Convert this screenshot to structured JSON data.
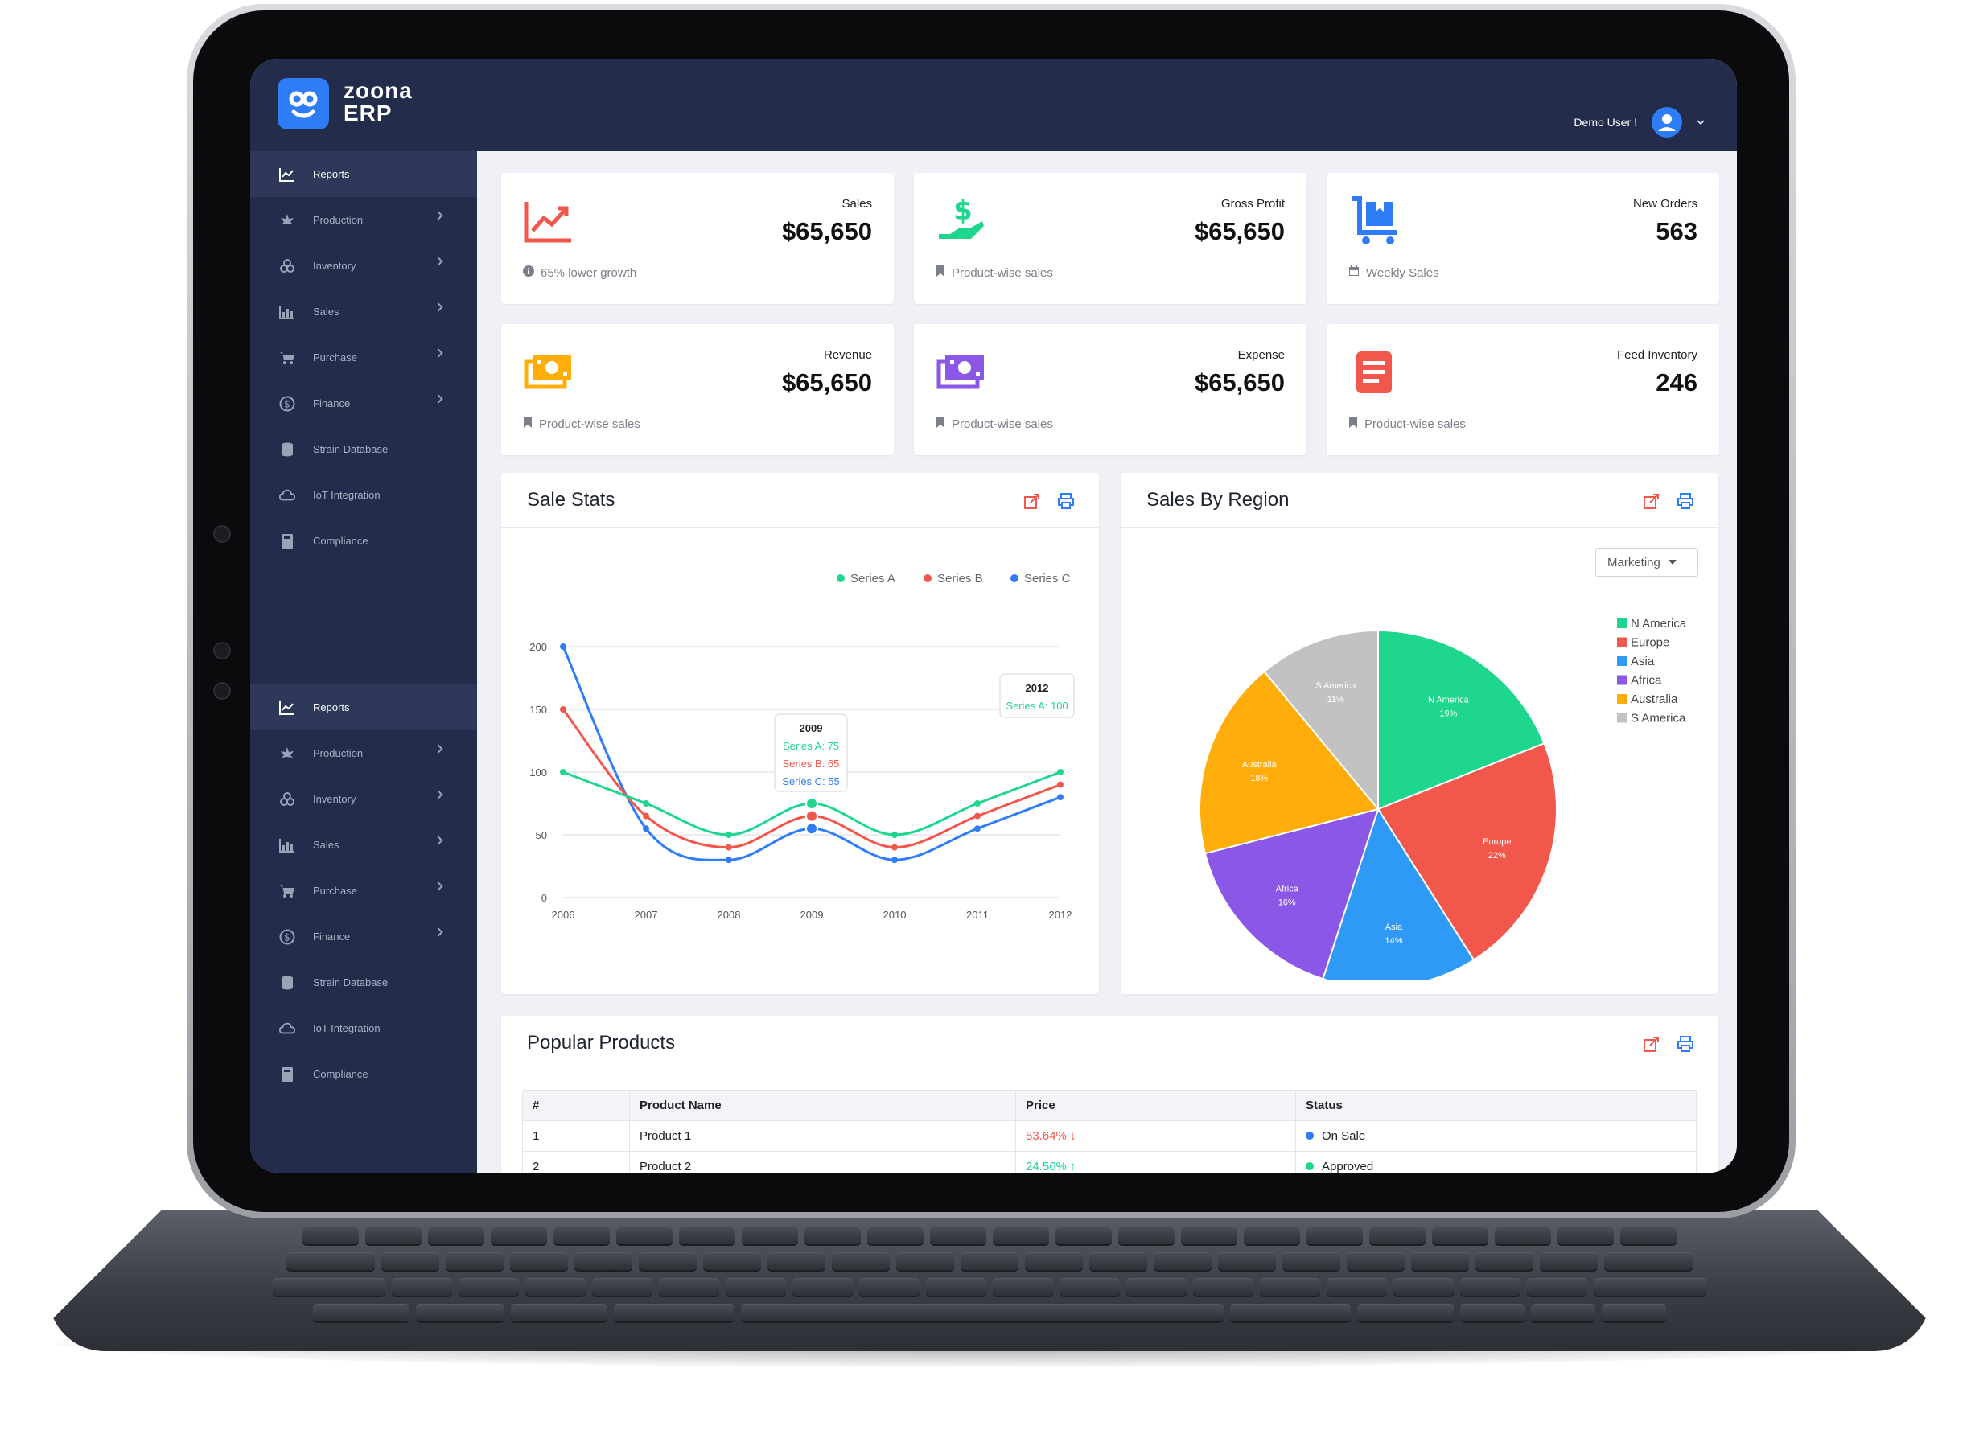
{
  "app": {
    "brand_line1": "zoona",
    "brand_line2": "ERP",
    "user_name": "Demo User !"
  },
  "sidebar": {
    "items": [
      {
        "label": "Reports",
        "icon": "chart-line-icon",
        "active": true
      },
      {
        "label": "Production",
        "icon": "leaf-icon",
        "chevron": true
      },
      {
        "label": "Inventory",
        "icon": "boxes-icon",
        "chevron": true
      },
      {
        "label": "Sales",
        "icon": "bar-chart-icon",
        "chevron": true
      },
      {
        "label": "Purchase",
        "icon": "cart-icon",
        "chevron": true
      },
      {
        "label": "Finance",
        "icon": "dollar-circle-icon",
        "chevron": true
      },
      {
        "label": "Strain Database",
        "icon": "database-icon"
      },
      {
        "label": "IoT Integration",
        "icon": "cloud-icon"
      },
      {
        "label": "Compliance",
        "icon": "book-icon"
      }
    ]
  },
  "stats": [
    {
      "label": "Sales",
      "value": "$65,650",
      "foot": "65% lower growth",
      "icon": "trend-up-icon",
      "color": "#f2574c"
    },
    {
      "label": "Gross Profit",
      "value": "$65,650",
      "foot": "Product-wise sales",
      "icon": "money-hand-icon",
      "color": "#1ed68e"
    },
    {
      "label": "New Orders",
      "value": "563",
      "foot": "Weekly Sales",
      "icon": "cart-box-icon",
      "color": "#2f7df6"
    },
    {
      "label": "Revenue",
      "value": "$65,650",
      "foot": "Product-wise sales",
      "icon": "cash-icon",
      "color": "#ffad0a"
    },
    {
      "label": "Expense",
      "value": "$65,650",
      "foot": "Product-wise sales",
      "icon": "cash-icon",
      "color": "#8a57e6"
    },
    {
      "label": "Feed Inventory",
      "value": "246",
      "foot": "Product-wise sales",
      "icon": "document-icon",
      "color": "#f2574c"
    }
  ],
  "sale_stats": {
    "title": "Sale Stats",
    "tooltip_2009": {
      "title": "2009",
      "a": "Series A: 75",
      "b": "Series B: 65",
      "c": "Series C: 55"
    },
    "tooltip_2012": {
      "title": "2012",
      "a": "Series A: 100"
    }
  },
  "chart_data": [
    {
      "type": "line",
      "title": "Sale Stats",
      "x": [
        "2006",
        "2007",
        "2008",
        "2009",
        "2010",
        "2011",
        "2012"
      ],
      "ylim": [
        0,
        200
      ],
      "yticks": [
        0,
        50,
        100,
        150,
        200
      ],
      "grid": true,
      "legend": "top-right",
      "series": [
        {
          "name": "Series A",
          "color": "#1ed68e",
          "values": [
            100,
            75,
            50,
            75,
            50,
            75,
            100
          ]
        },
        {
          "name": "Series B",
          "color": "#f2574c",
          "values": [
            150,
            65,
            40,
            65,
            40,
            65,
            90
          ]
        },
        {
          "name": "Series C",
          "color": "#2f7df6",
          "values": [
            200,
            55,
            30,
            55,
            30,
            55,
            80
          ]
        }
      ]
    },
    {
      "type": "pie",
      "title": "Sales By Region",
      "legend": "right",
      "slices": [
        {
          "label": "N America",
          "value": 19,
          "text": "19%",
          "color": "#1ed68e"
        },
        {
          "label": "Europe",
          "value": 22,
          "text": "22%",
          "color": "#f2574c"
        },
        {
          "label": "Asia",
          "value": 14,
          "text": "14%",
          "color": "#2f9af6"
        },
        {
          "label": "Africa",
          "value": 16,
          "text": "16%",
          "color": "#8a57e6"
        },
        {
          "label": "Australia",
          "value": 18,
          "text": "18%",
          "color": "#ffad0a"
        },
        {
          "label": "S America",
          "value": 11,
          "text": "11%",
          "color": "#c2c2c2"
        }
      ]
    }
  ],
  "sales_by_region": {
    "title": "Sales By Region",
    "dropdown": "Marketing"
  },
  "popular_products": {
    "title": "Popular Products",
    "columns": [
      "#",
      "Product Name",
      "Price",
      "Status"
    ],
    "rows": [
      {
        "n": "1",
        "name": "Product 1",
        "price": "53.64%",
        "trend": "down",
        "status": "On Sale",
        "status_color": "#2f7df6"
      },
      {
        "n": "2",
        "name": "Product 2",
        "price": "24.56%",
        "trend": "up",
        "status": "Approved",
        "status_color": "#1ed68e"
      }
    ]
  }
}
